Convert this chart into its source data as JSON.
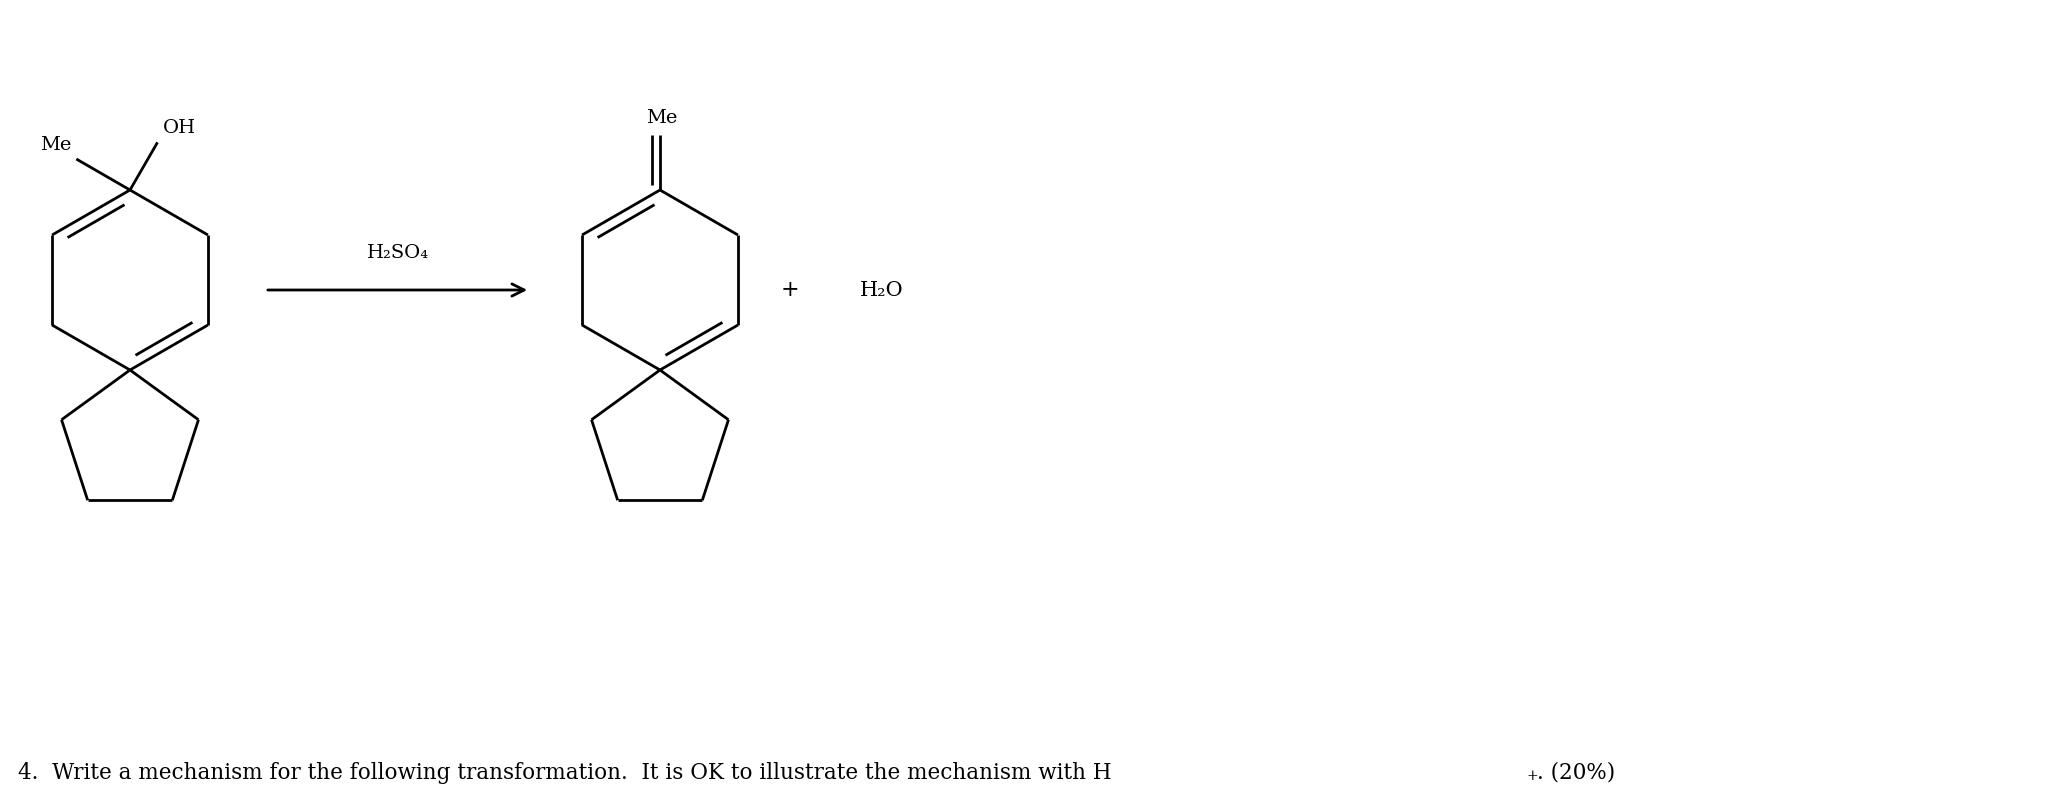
{
  "background_color": "#ffffff",
  "text_color": "#000000",
  "title_color": "#000000",
  "reagent": "H₂SO₄",
  "fig_width": 20.46,
  "fig_height": 7.97,
  "title_line1": "4.  Write a mechanism for the following transformation.  It is OK to illustrate the mechanism with H",
  "title_superscript": "+",
  "title_suffix": ". (20%)",
  "label_Me": "Me",
  "label_OH": "OH",
  "label_Me_product": "Me",
  "label_plus": "+",
  "label_water": "H₂O"
}
